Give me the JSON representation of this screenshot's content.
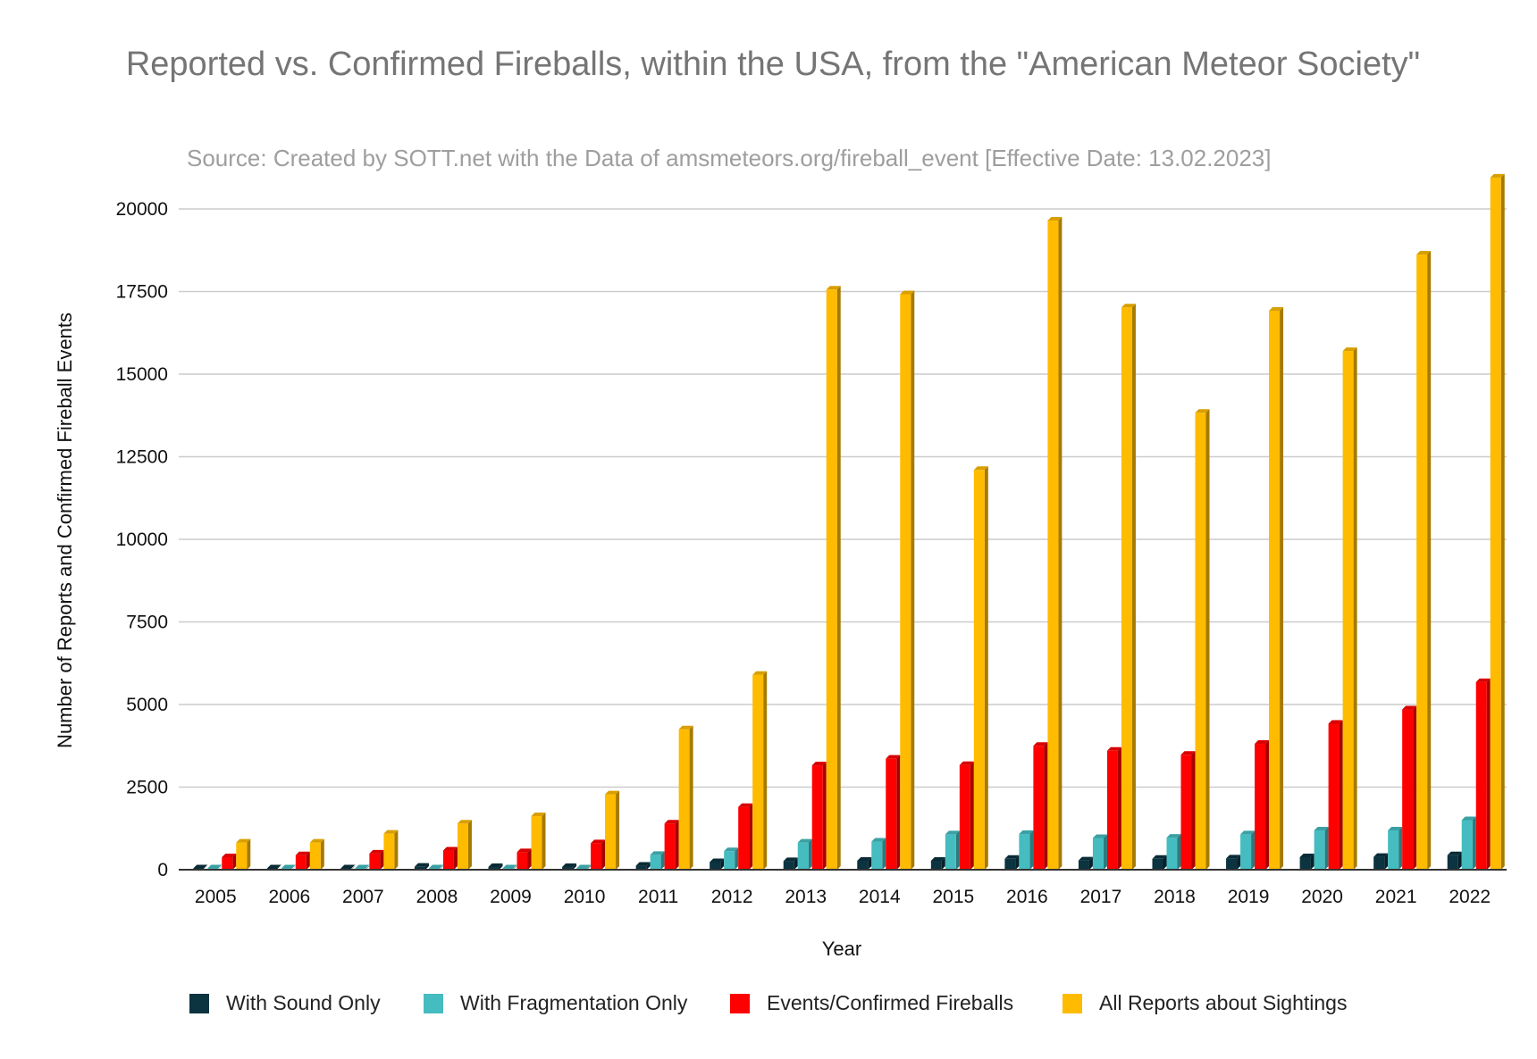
{
  "chart_data": {
    "type": "bar",
    "title": "Reported vs. Confirmed Fireballs, within the USA, from the \"American Meteor Society\"",
    "subtitle": "Source: Created by SOTT.net with the Data of amsmeteors.org/fireball_event [Effective Date: 13.02.2023]",
    "xlabel": "Year",
    "ylabel": "Number of Reports and Confirmed Fireball Events",
    "ylim": [
      0,
      20000
    ],
    "yticks": [
      0,
      2500,
      5000,
      7500,
      10000,
      12500,
      15000,
      17500,
      20000
    ],
    "grid": true,
    "legend_position": "bottom",
    "categories": [
      "2005",
      "2006",
      "2007",
      "2008",
      "2009",
      "2010",
      "2011",
      "2012",
      "2013",
      "2014",
      "2015",
      "2016",
      "2017",
      "2018",
      "2019",
      "2020",
      "2021",
      "2022"
    ],
    "series": [
      {
        "name": "With Sound Only",
        "color": "#0b3340",
        "values": [
          5,
          5,
          10,
          90,
          80,
          80,
          120,
          230,
          260,
          270,
          270,
          330,
          280,
          330,
          340,
          380,
          390,
          440
        ]
      },
      {
        "name": "With Fragmentation Only",
        "color": "#45bcc0",
        "values": [
          10,
          10,
          20,
          20,
          20,
          30,
          450,
          560,
          820,
          850,
          1070,
          1080,
          960,
          970,
          1070,
          1190,
          1190,
          1500
        ]
      },
      {
        "name": "Events/Confirmed Fireballs",
        "color": "#ff0000",
        "values": [
          380,
          440,
          490,
          580,
          530,
          800,
          1400,
          1900,
          3160,
          3360,
          3170,
          3750,
          3600,
          3480,
          3810,
          4420,
          4850,
          5680
        ]
      },
      {
        "name": "All Reports about Sightings",
        "color": "#ffbb00",
        "values": [
          820,
          820,
          1090,
          1400,
          1620,
          2280,
          4250,
          5900,
          17560,
          17420,
          12100,
          19650,
          17020,
          13830,
          16920,
          15700,
          18620,
          20950
        ]
      }
    ]
  }
}
